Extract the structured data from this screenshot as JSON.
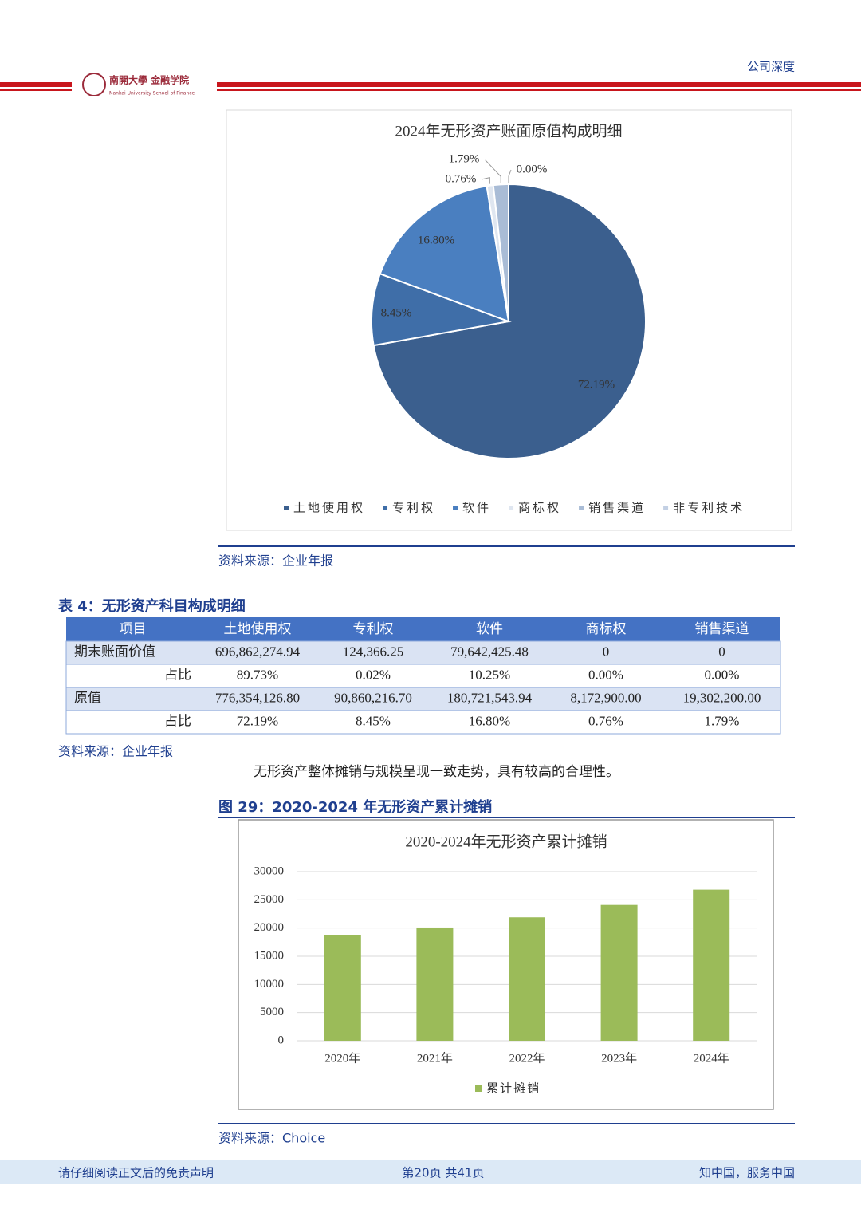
{
  "header": {
    "section": "公司深度",
    "logo_name": "南開大學 金融学院",
    "logo_sub": "Nankai University School of Finance"
  },
  "chart_data": [
    {
      "type": "pie",
      "title": "2024年无形资产账面原值构成明细",
      "categories": [
        "土地使用权",
        "专利权",
        "软件",
        "商标权",
        "销售渠道",
        "非专利技术"
      ],
      "values": [
        72.19,
        8.45,
        16.8,
        0.76,
        1.79,
        0
      ],
      "value_labels": [
        "72.19%",
        "8.45%",
        "16.80%",
        "0.76%",
        "1.79%",
        "0.00%"
      ],
      "colors": [
        "#3b5f8e",
        "#3f6ea8",
        "#4a7fc0",
        "#dfe6f0",
        "#a9bcd6",
        "#c3d0e4"
      ],
      "legend": "bottom"
    },
    {
      "type": "bar",
      "title": "2020-2024年无形资产累计摊销",
      "categories": [
        "2020年",
        "2021年",
        "2022年",
        "2023年",
        "2024年"
      ],
      "series": [
        {
          "name": "累计摊销",
          "color": "#9bbb59",
          "values": [
            18700,
            20100,
            21900,
            24100,
            26800
          ]
        }
      ],
      "ylim": [
        0,
        30000
      ],
      "yticks": [
        0,
        5000,
        10000,
        15000,
        20000,
        25000,
        30000
      ],
      "grid": true,
      "legend": "bottom"
    }
  ],
  "figure_28_source": "资料来源：企业年报",
  "table": {
    "title": "表 4：无形资产科目构成明细",
    "columns": [
      "项目",
      "土地使用权",
      "专利权",
      "软件",
      "商标权",
      "销售渠道"
    ],
    "rows": [
      [
        "期末账面价值",
        "696,862,274.94",
        "124,366.25",
        "79,642,425.48",
        "0",
        "0"
      ],
      [
        "占比",
        "89.73%",
        "0.02%",
        "10.25%",
        "0.00%",
        "0.00%"
      ],
      [
        "原值",
        "776,354,126.80",
        "90,860,216.70",
        "180,721,543.94",
        "8,172,900.00",
        "19,302,200.00"
      ],
      [
        "占比",
        "72.19%",
        "8.45%",
        "16.80%",
        "0.76%",
        "1.79%"
      ]
    ],
    "source": "资料来源：企业年报"
  },
  "paragraph": "无形资产整体摊销与规模呈现一致走势，具有较高的合理性。",
  "figure_29": {
    "title": "图 29：2020-2024 年无形资产累计摊销",
    "source": "资料来源：Choice"
  },
  "footer": {
    "left": "请仔细阅读正文后的免责声明",
    "center": "第20页 共41页",
    "right": "知中国，服务中国"
  }
}
